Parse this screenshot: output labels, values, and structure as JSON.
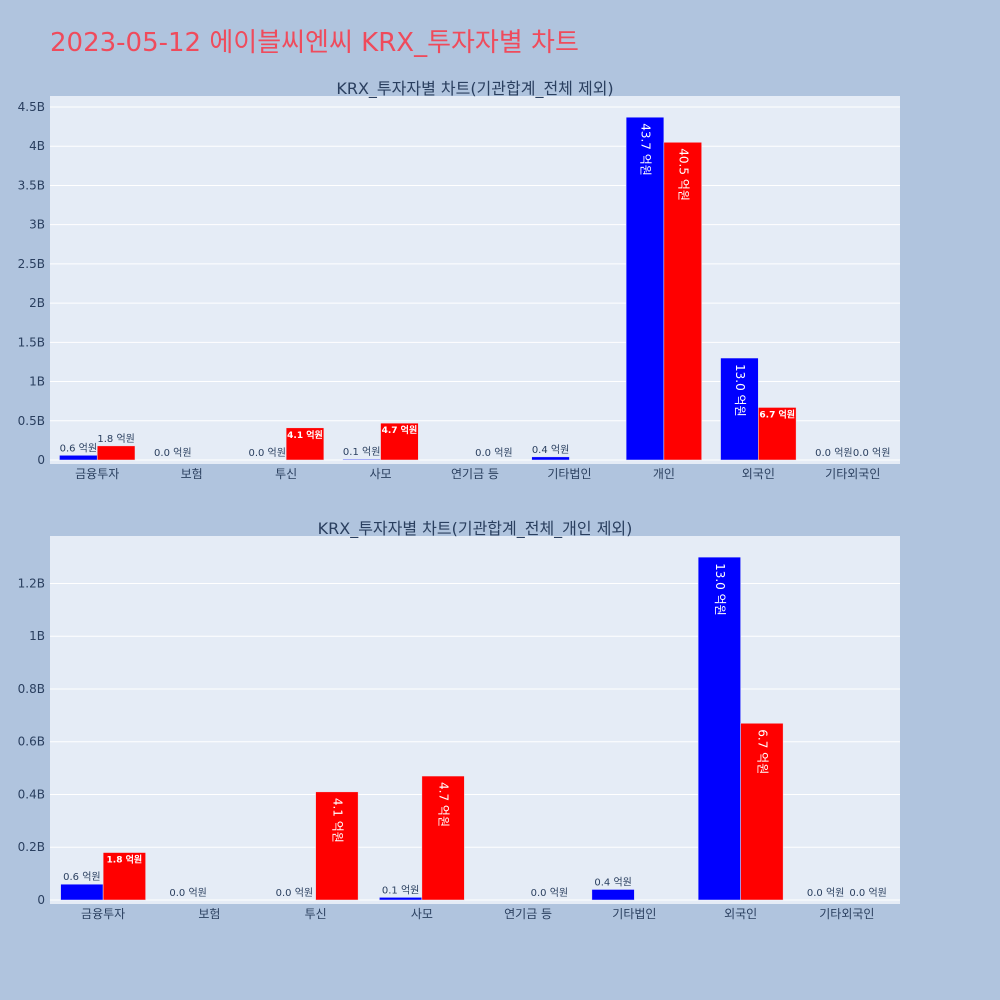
{
  "page": {
    "title": "2023-05-12 에이블씨엔씨 KRX_투자자별 차트",
    "title_color": "#ef4b5c",
    "background": "#b0c4de",
    "plot_background": "#e5ecf6",
    "series_colors": [
      "#0000ff",
      "#ff0000"
    ]
  },
  "chart_data": [
    {
      "type": "bar",
      "title": "KRX_투자자별 차트(기관합계_전체 제외)",
      "categories": [
        "금융투자",
        "보험",
        "투신",
        "사모",
        "연기금 등",
        "기타법인",
        "개인",
        "외국인",
        "기타외국인"
      ],
      "series": [
        {
          "color": "#0000ff",
          "values": [
            60000000,
            0,
            0,
            10000000,
            0,
            40000000,
            4370000000,
            1300000000,
            0
          ],
          "labels": [
            "0.6 억원",
            "0.0 억원",
            "0.0 억원",
            "0.1 억원",
            "",
            "0.4 억원",
            "43.7 억원",
            "13.0 억원",
            "0.0 억원"
          ]
        },
        {
          "color": "#ff0000",
          "values": [
            180000000,
            0,
            410000000,
            470000000,
            0,
            0,
            4050000000,
            670000000,
            0
          ],
          "labels": [
            "1.8 억원",
            "",
            "4.1 억원",
            "4.7 억원",
            "0.0 억원",
            "",
            "40.5 억원",
            "6.7 억원",
            "0.0 억원"
          ]
        }
      ],
      "ylim": [
        0,
        4500000000
      ],
      "yticks": [
        0,
        500000000,
        1000000000,
        1500000000,
        2000000000,
        2500000000,
        3000000000,
        3500000000,
        4000000000,
        4500000000
      ],
      "ytick_labels": [
        "0",
        "0.5B",
        "1B",
        "1.5B",
        "2B",
        "2.5B",
        "3B",
        "3.5B",
        "4B",
        "4.5B"
      ],
      "grid": true
    },
    {
      "type": "bar",
      "title": "KRX_투자자별 차트(기관합계_전체_개인 제외)",
      "categories": [
        "금융투자",
        "보험",
        "투신",
        "사모",
        "연기금 등",
        "기타법인",
        "외국인",
        "기타외국인"
      ],
      "series": [
        {
          "color": "#0000ff",
          "values": [
            60000000,
            0,
            0,
            10000000,
            0,
            40000000,
            1300000000,
            0
          ],
          "labels": [
            "0.6 억원",
            "0.0 억원",
            "0.0 억원",
            "0.1 억원",
            "",
            "0.4 억원",
            "13.0 억원",
            "0.0 억원"
          ]
        },
        {
          "color": "#ff0000",
          "values": [
            180000000,
            0,
            410000000,
            470000000,
            0,
            0,
            670000000,
            0
          ],
          "labels": [
            "1.8 억원",
            "",
            "4.1 억원",
            "4.7 억원",
            "0.0 억원",
            "",
            "6.7 억원",
            "0.0 억원"
          ]
        }
      ],
      "ylim": [
        0,
        1380000000
      ],
      "yticks": [
        0,
        200000000,
        400000000,
        600000000,
        800000000,
        1000000000,
        1200000000
      ],
      "ytick_labels": [
        "0",
        "0.2B",
        "0.4B",
        "0.6B",
        "0.8B",
        "1B",
        "1.2B"
      ],
      "grid": true
    }
  ]
}
